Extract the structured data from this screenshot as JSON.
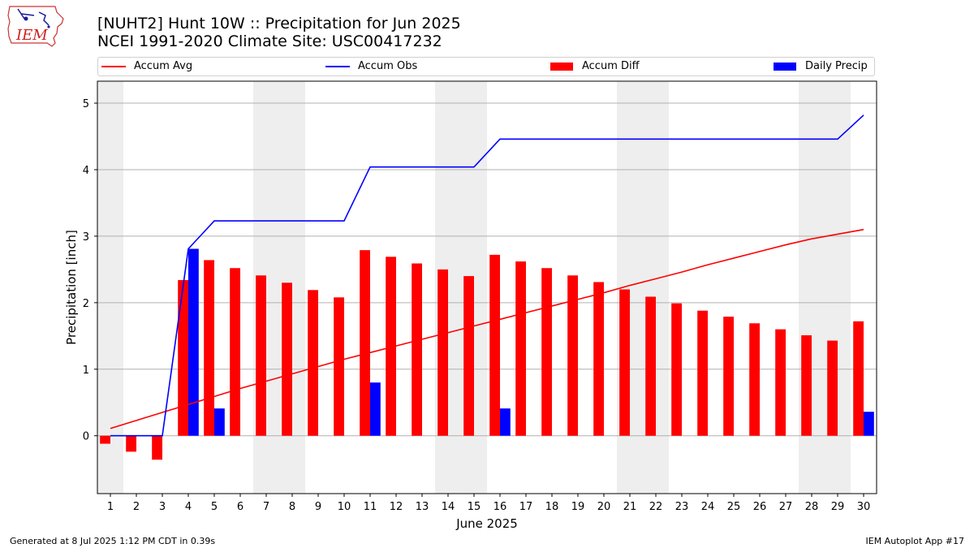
{
  "header": {
    "title_line1": "[NUHT2] Hunt 10W :: Precipitation for Jun 2025",
    "title_line2": "NCEI 1991-2020 Climate Site: USC00417232",
    "logo_text": "IEM"
  },
  "footer": {
    "left": "Generated at 8 Jul 2025 1:12 PM CDT in 0.39s",
    "right": "IEM Autoplot App #17"
  },
  "colors": {
    "avg": "#ff0000",
    "obs": "#0000ff",
    "diff": "#ff0000",
    "daily": "#0000ff",
    "shade": "#eeeeee",
    "grid": "#b0b0b0"
  },
  "chart_data": {
    "type": "bar",
    "xlabel": "June 2025",
    "ylabel": "Precipitation [inch]",
    "ylim": [
      -0.87,
      5.33
    ],
    "yticks": [
      0,
      1,
      2,
      3,
      4,
      5
    ],
    "xlim": [
      0.5,
      30.5
    ],
    "x": [
      1,
      2,
      3,
      4,
      5,
      6,
      7,
      8,
      9,
      10,
      11,
      12,
      13,
      14,
      15,
      16,
      17,
      18,
      19,
      20,
      21,
      22,
      23,
      24,
      25,
      26,
      27,
      28,
      29,
      30
    ],
    "shaded_weekends": [
      [
        0.5,
        1.5
      ],
      [
        6.5,
        8.5
      ],
      [
        13.5,
        15.5
      ],
      [
        20.5,
        22.5
      ],
      [
        27.5,
        29.5
      ]
    ],
    "grid": "y",
    "legend_position": "top",
    "series": [
      {
        "name": "Accum Avg",
        "kind": "line",
        "values": [
          0.11,
          0.23,
          0.35,
          0.47,
          0.59,
          0.71,
          0.82,
          0.93,
          1.04,
          1.15,
          1.25,
          1.35,
          1.45,
          1.55,
          1.65,
          1.75,
          1.85,
          1.95,
          2.05,
          2.15,
          2.26,
          2.36,
          2.46,
          2.57,
          2.67,
          2.77,
          2.87,
          2.96,
          3.03,
          3.1
        ]
      },
      {
        "name": "Accum Obs",
        "kind": "line",
        "values": [
          0,
          0,
          0,
          2.81,
          3.23,
          3.23,
          3.23,
          3.23,
          3.23,
          3.23,
          4.04,
          4.04,
          4.04,
          4.04,
          4.04,
          4.46,
          4.46,
          4.46,
          4.46,
          4.46,
          4.46,
          4.46,
          4.46,
          4.46,
          4.46,
          4.46,
          4.46,
          4.46,
          4.46,
          4.82
        ]
      },
      {
        "name": "Accum Diff",
        "kind": "bar",
        "values": [
          -0.12,
          -0.24,
          -0.36,
          2.34,
          2.64,
          2.52,
          2.41,
          2.3,
          2.19,
          2.08,
          2.79,
          2.69,
          2.59,
          2.5,
          2.4,
          2.72,
          2.62,
          2.52,
          2.41,
          2.31,
          2.2,
          2.09,
          1.99,
          1.88,
          1.79,
          1.69,
          1.6,
          1.51,
          1.43,
          1.72
        ]
      },
      {
        "name": "Daily Precip",
        "kind": "bar",
        "values": [
          0,
          0,
          0,
          2.81,
          0.41,
          0,
          0,
          0,
          0,
          0,
          0.8,
          0,
          0,
          0,
          0,
          0.41,
          0,
          0,
          0,
          0,
          0,
          0,
          0,
          0,
          0,
          0,
          0,
          0,
          0,
          0.36
        ]
      }
    ]
  }
}
